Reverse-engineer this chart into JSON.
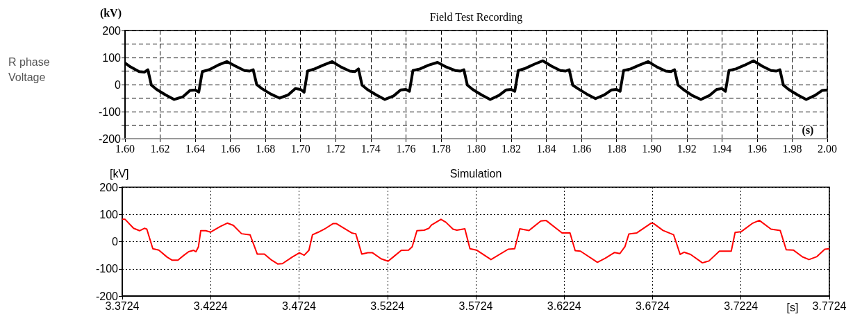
{
  "chart_data": [
    {
      "type": "line",
      "title": "Field Test Recording",
      "ylabel": "(kV)",
      "xlabel": "(s)",
      "annotations": [
        "R phase Voltage"
      ],
      "xlim": [
        1.6,
        2.0
      ],
      "xticks": [
        {
          "value": 1.6,
          "label": "1.60"
        },
        {
          "value": 1.62,
          "label": "1.62"
        },
        {
          "value": 1.64,
          "label": "1.64"
        },
        {
          "value": 1.66,
          "label": "1.66"
        },
        {
          "value": 1.68,
          "label": "1.68"
        },
        {
          "value": 1.7,
          "label": "1.70"
        },
        {
          "value": 1.72,
          "label": "1.72"
        },
        {
          "value": 1.74,
          "label": "1.74"
        },
        {
          "value": 1.76,
          "label": "1.76"
        },
        {
          "value": 1.78,
          "label": "1.78"
        },
        {
          "value": 1.8,
          "label": "1.80"
        },
        {
          "value": 1.82,
          "label": "1.82"
        },
        {
          "value": 1.84,
          "label": "1.84"
        },
        {
          "value": 1.86,
          "label": "1.86"
        },
        {
          "value": 1.88,
          "label": "1.88"
        },
        {
          "value": 1.9,
          "label": "1.90"
        },
        {
          "value": 1.92,
          "label": "1.92"
        },
        {
          "value": 1.94,
          "label": "1.94"
        },
        {
          "value": 1.96,
          "label": "1.96"
        },
        {
          "value": 1.98,
          "label": "1.98"
        },
        {
          "value": 2.0,
          "label": "2.00"
        }
      ],
      "ylim": [
        -200,
        200
      ],
      "yticks": [
        -200,
        {
          "value": -150,
          "label": null
        },
        -100,
        {
          "value": -50,
          "label": null
        },
        0,
        {
          "value": 50,
          "label": null
        },
        100,
        {
          "value": 150,
          "label": null
        },
        200
      ],
      "grid": true,
      "marker": "none",
      "line_style": "solid",
      "series": [
        {
          "color": "#000000",
          "x": [
            1.6,
            1.603,
            1.608,
            1.611,
            1.613,
            1.615,
            1.618,
            1.623,
            1.628,
            1.633,
            1.637,
            1.64,
            1.642,
            1.644,
            1.648,
            1.653,
            1.658,
            1.663,
            1.668,
            1.671,
            1.673,
            1.675,
            1.678,
            1.683,
            1.688,
            1.693,
            1.697,
            1.7,
            1.702,
            1.704,
            1.708,
            1.713,
            1.718,
            1.723,
            1.728,
            1.731,
            1.733,
            1.735,
            1.738,
            1.743,
            1.748,
            1.753,
            1.757,
            1.76,
            1.762,
            1.764,
            1.768,
            1.773,
            1.778,
            1.783,
            1.788,
            1.791,
            1.793,
            1.795,
            1.798,
            1.803,
            1.808,
            1.813,
            1.817,
            1.82,
            1.822,
            1.824,
            1.828,
            1.833,
            1.838,
            1.843,
            1.848,
            1.851,
            1.853,
            1.855,
            1.858,
            1.863,
            1.868,
            1.873,
            1.877,
            1.88,
            1.882,
            1.884,
            1.888,
            1.893,
            1.898,
            1.903,
            1.908,
            1.911,
            1.913,
            1.915,
            1.918,
            1.923,
            1.928,
            1.933,
            1.937,
            1.94,
            1.942,
            1.944,
            1.948,
            1.953,
            1.958,
            1.963,
            1.968,
            1.971,
            1.973,
            1.975,
            1.978,
            1.983,
            1.988,
            1.993,
            1.997,
            2.0
          ],
          "values": [
            80,
            66,
            48,
            46,
            55,
            -2,
            -18,
            -38,
            -55,
            -45,
            -22,
            -20,
            -28,
            48,
            55,
            72,
            85,
            68,
            52,
            50,
            55,
            0,
            -15,
            -35,
            -50,
            -38,
            -15,
            -18,
            -28,
            50,
            58,
            72,
            85,
            65,
            50,
            48,
            58,
            -2,
            -18,
            -38,
            -55,
            -42,
            -20,
            -18,
            -25,
            52,
            58,
            72,
            82,
            65,
            52,
            50,
            55,
            -2,
            -18,
            -38,
            -55,
            -40,
            -20,
            -18,
            -25,
            52,
            60,
            75,
            88,
            68,
            52,
            50,
            55,
            -2,
            -15,
            -35,
            -52,
            -38,
            -20,
            -18,
            -25,
            52,
            58,
            72,
            85,
            65,
            50,
            48,
            55,
            -2,
            -18,
            -40,
            -55,
            -40,
            -18,
            -15,
            -25,
            52,
            58,
            72,
            88,
            68,
            52,
            50,
            55,
            -2,
            -18,
            -38,
            -55,
            -40,
            -22,
            -20
          ]
        }
      ]
    },
    {
      "type": "line",
      "title": "Simulation",
      "ylabel": "[kV]",
      "xlabel": "[s]",
      "xlim": [
        3.3724,
        3.7724
      ],
      "xticks": [
        3.3724,
        3.4224,
        3.4724,
        3.5224,
        3.5724,
        3.6224,
        3.6724,
        3.7224,
        3.7724
      ],
      "ylim": [
        -200,
        200
      ],
      "yticks": [
        -200,
        -100,
        0,
        100,
        200
      ],
      "grid": true,
      "marker": "none",
      "line_style": "solid",
      "series": [
        {
          "color": "#ff0000",
          "x": [
            3.3724,
            3.374,
            3.3788,
            3.3822,
            3.3849,
            3.3863,
            3.3897,
            3.3931,
            3.3978,
            3.4005,
            3.4039,
            3.4073,
            3.41,
            3.4128,
            3.4141,
            3.4155,
            3.4168,
            3.4196,
            3.4223,
            3.4277,
            3.4318,
            3.4352,
            3.4399,
            3.4447,
            3.4488,
            3.4528,
            3.4569,
            3.4603,
            3.463,
            3.4685,
            3.4726,
            3.4753,
            3.478,
            3.48,
            3.4834,
            3.4875,
            3.4916,
            3.4936,
            3.5025,
            3.5045,
            3.5079,
            3.5113,
            3.514,
            3.5188,
            3.5228,
            3.5256,
            3.5303,
            3.5344,
            3.5364,
            3.5391,
            3.5432,
            3.5459,
            3.5473,
            3.5527,
            3.5555,
            3.5595,
            3.5617,
            3.5662,
            3.5691,
            3.5728,
            3.581,
            3.5907,
            3.5944,
            3.5973,
            3.6025,
            3.6092,
            3.6121,
            3.6212,
            3.6257,
            3.6286,
            3.6316,
            3.6412,
            3.6457,
            3.6509,
            3.6539,
            3.6568,
            3.659,
            3.6635,
            3.6716,
            3.6731,
            3.6783,
            3.6843,
            3.688,
            3.6902,
            3.6939,
            3.7006,
            3.7043,
            3.7102,
            3.7169,
            3.7191,
            3.7224,
            3.7291,
            3.7328,
            3.7394,
            3.7446,
            3.748,
            3.752,
            3.7572,
            3.7609,
            3.7654,
            3.7698,
            3.7724
          ],
          "values": [
            82,
            82,
            49,
            40,
            49,
            46,
            -26,
            -31,
            -57,
            -68,
            -68,
            -50,
            -37,
            -32,
            -37,
            -19,
            40,
            40,
            35,
            55,
            68,
            60,
            29,
            25,
            -46,
            -46,
            -68,
            -82,
            -81,
            -57,
            -41,
            -50,
            -32,
            25,
            35,
            49,
            66,
            66,
            31,
            29,
            -46,
            -41,
            -41,
            -63,
            -72,
            -57,
            -32,
            -31,
            -19,
            40,
            42,
            49,
            61,
            82,
            71,
            46,
            42,
            47,
            -26,
            -31,
            -66,
            -28,
            -26,
            47,
            41,
            76,
            78,
            32,
            32,
            -33,
            -35,
            -76,
            -61,
            -40,
            -44,
            -18,
            28,
            32,
            68,
            66,
            41,
            25,
            -47,
            -39,
            -47,
            -78,
            -71,
            -35,
            -35,
            34,
            36,
            68,
            78,
            46,
            41,
            -30,
            -31,
            -56,
            -66,
            -55,
            -28,
            -26
          ]
        }
      ]
    }
  ]
}
